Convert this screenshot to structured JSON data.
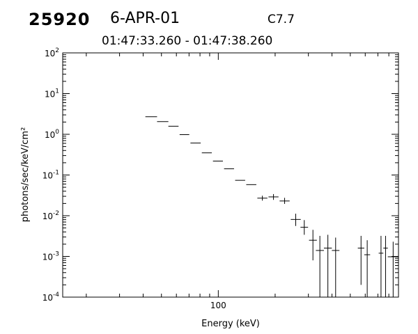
{
  "header": {
    "obs_id": "25920",
    "date": "6-APR-01",
    "goes_class": "C7.7",
    "time_range": "01:47:33.260 - 01:47:38.260"
  },
  "chart_data": {
    "type": "scatter",
    "title": "",
    "xlabel": "Energy (keV)",
    "ylabel": "photons/sec/keV/cm²",
    "x_scale": "log",
    "y_scale": "log",
    "xlim": [
      15,
      900
    ],
    "ylim": [
      0.0001,
      100
    ],
    "x_tick_labels": [
      "100"
    ],
    "y_tick_labels": [
      {
        "value": 0.0001,
        "base": "10",
        "exp": "-4"
      },
      {
        "value": 0.001,
        "base": "10",
        "exp": "-3"
      },
      {
        "value": 0.01,
        "base": "10",
        "exp": "-2"
      },
      {
        "value": 0.1,
        "base": "10",
        "exp": "-1"
      },
      {
        "value": 1,
        "base": "10",
        "exp": "0"
      },
      {
        "value": 10,
        "base": "10",
        "exp": "1"
      },
      {
        "value": 100,
        "base": "10",
        "exp": "2"
      }
    ],
    "grid": false,
    "points": [
      {
        "x_lo": 41.1,
        "x_hi": 47.4,
        "y": 2.7
      },
      {
        "x_lo": 47.4,
        "x_hi": 54.4,
        "y": 2.05
      },
      {
        "x_lo": 54.4,
        "x_hi": 61.6,
        "y": 1.58
      },
      {
        "x_lo": 62.4,
        "x_hi": 70.2,
        "y": 0.98
      },
      {
        "x_lo": 71.2,
        "x_hi": 80.7,
        "y": 0.61
      },
      {
        "x_lo": 81.8,
        "x_hi": 92.4,
        "y": 0.35
      },
      {
        "x_lo": 93.7,
        "x_hi": 105.8,
        "y": 0.22
      },
      {
        "x_lo": 107.3,
        "x_hi": 121.2,
        "y": 0.142
      },
      {
        "x_lo": 122.8,
        "x_hi": 138.8,
        "y": 0.074
      },
      {
        "x_lo": 140.6,
        "x_hi": 159.0,
        "y": 0.058
      },
      {
        "x_lo": 161.0,
        "x_hi": 182.0,
        "y": 0.027,
        "y_lo": 0.0235,
        "y_hi": 0.031
      },
      {
        "x_lo": 184.4,
        "x_hi": 208.4,
        "y": 0.029,
        "y_lo": 0.0245,
        "y_hi": 0.034
      },
      {
        "x_lo": 211.2,
        "x_hi": 238.7,
        "y": 0.023,
        "y_lo": 0.0195,
        "y_hi": 0.0275
      },
      {
        "x_lo": 241.9,
        "x_hi": 273.3,
        "y": 0.0081,
        "y_lo": 0.0056,
        "y_hi": 0.0112
      },
      {
        "x_lo": 272.4,
        "x_hi": 298.8,
        "y": 0.0052,
        "y_lo": 0.0034,
        "y_hi": 0.0078
      },
      {
        "x_lo": 302.3,
        "x_hi": 332.6,
        "y": 0.0025,
        "y_lo": 0.0008,
        "y_hi": 0.0045
      },
      {
        "x_lo": 328.5,
        "x_hi": 362.5,
        "y": 0.0014,
        "y_lo": 0.0001,
        "y_hi": 0.0032
      },
      {
        "x_lo": 362.5,
        "x_hi": 399.3,
        "y": 0.0016,
        "y_lo": 0.0001,
        "y_hi": 0.0034
      },
      {
        "x_lo": 399.3,
        "x_hi": 438.0,
        "y": 0.0014,
        "y_lo": 0.0001,
        "y_hi": 0.0029
      },
      {
        "x_lo": 548.0,
        "x_hi": 593.0,
        "y": 0.0016,
        "y_lo": 0.0002,
        "y_hi": 0.0032
      },
      {
        "x_lo": 593.0,
        "x_hi": 637.0,
        "y": 0.0011,
        "y_lo": 0.0001,
        "y_hi": 0.0025
      },
      {
        "x_lo": 707.0,
        "x_hi": 748.0,
        "y": 0.0012,
        "y_lo": 0.0001,
        "y_hi": 0.0032
      },
      {
        "x_lo": 748.0,
        "x_hi": 790.0,
        "y": 0.0016,
        "y_lo": 0.0001,
        "y_hi": 0.0032
      },
      {
        "x_lo": 790.0,
        "x_hi": 900.0,
        "y": 0.00098,
        "y_lo": 0.0001,
        "y_hi": 0.0023
      }
    ],
    "color": "#000000"
  }
}
